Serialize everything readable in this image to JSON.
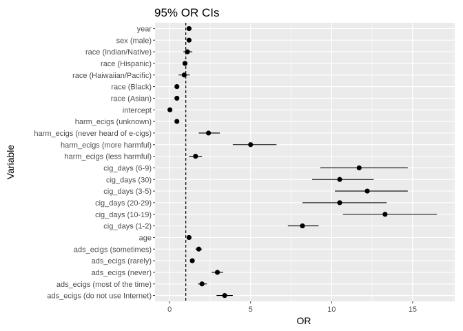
{
  "chart_data": {
    "type": "scatter",
    "subtype": "forest-plot",
    "title": "95% OR CIs",
    "xlabel": "OR",
    "ylabel": "Variable",
    "xlim": [
      -0.9,
      17.6
    ],
    "xticks": [
      0,
      5,
      10,
      15
    ],
    "grid": true,
    "legend": "none",
    "reference_line": {
      "x": 1,
      "style": "dashed"
    },
    "colors": {
      "panel": "#ebebeb",
      "grid": "#ffffff",
      "marks": "#000000",
      "ticks": "#4d4d4d"
    },
    "points": [
      {
        "label": "year",
        "or": 1.2,
        "low": 1.05,
        "high": 1.35
      },
      {
        "label": "sex (male)",
        "or": 1.2,
        "low": 1.05,
        "high": 1.35
      },
      {
        "label": "race (Indian/Native)",
        "or": 1.1,
        "low": 0.85,
        "high": 1.4
      },
      {
        "label": "race (Hispanic)",
        "or": 0.95,
        "low": 0.85,
        "high": 1.05
      },
      {
        "label": "race (Haiwaiian/Pacific)",
        "or": 0.9,
        "low": 0.55,
        "high": 1.25
      },
      {
        "label": "race (Black)",
        "or": 0.45,
        "low": 0.35,
        "high": 0.55
      },
      {
        "label": "race (Asian)",
        "or": 0.45,
        "low": 0.35,
        "high": 0.55
      },
      {
        "label": "intercept",
        "or": 0.02,
        "low": 0.0,
        "high": 0.05
      },
      {
        "label": "harm_ecigs (unknown)",
        "or": 0.45,
        "low": 0.35,
        "high": 0.55
      },
      {
        "label": "harm_ecigs (never heard of e-cigs)",
        "or": 2.4,
        "low": 1.8,
        "high": 3.1
      },
      {
        "label": "harm_ecigs (more harmful)",
        "or": 5.0,
        "low": 3.9,
        "high": 6.6
      },
      {
        "label": "harm_ecigs (less harmful)",
        "or": 1.6,
        "low": 1.2,
        "high": 2.0
      },
      {
        "label": "cig_days (6-9)",
        "or": 11.7,
        "low": 9.3,
        "high": 14.7
      },
      {
        "label": "cig_days (30)",
        "or": 10.5,
        "low": 8.8,
        "high": 12.6
      },
      {
        "label": "cig_days (3-5)",
        "or": 12.2,
        "low": 10.2,
        "high": 14.7
      },
      {
        "label": "cig_days (20-29)",
        "or": 10.5,
        "low": 8.2,
        "high": 13.4
      },
      {
        "label": "cig_days (10-19)",
        "or": 13.3,
        "low": 10.7,
        "high": 16.5
      },
      {
        "label": "cig_days (1-2)",
        "or": 8.2,
        "low": 7.3,
        "high": 9.2
      },
      {
        "label": "age",
        "or": 1.2,
        "low": 1.1,
        "high": 1.3
      },
      {
        "label": "ads_ecigs (sometimes)",
        "or": 1.8,
        "low": 1.6,
        "high": 2.0
      },
      {
        "label": "ads_ecigs (rarely)",
        "or": 1.4,
        "low": 1.25,
        "high": 1.55
      },
      {
        "label": "ads_ecigs (never)",
        "or": 2.95,
        "low": 2.6,
        "high": 3.3
      },
      {
        "label": "ads_ecigs (most of the time)",
        "or": 2.0,
        "low": 1.75,
        "high": 2.3
      },
      {
        "label": "ads_ecigs (do not use Internet)",
        "or": 3.4,
        "low": 2.9,
        "high": 3.9
      }
    ]
  }
}
